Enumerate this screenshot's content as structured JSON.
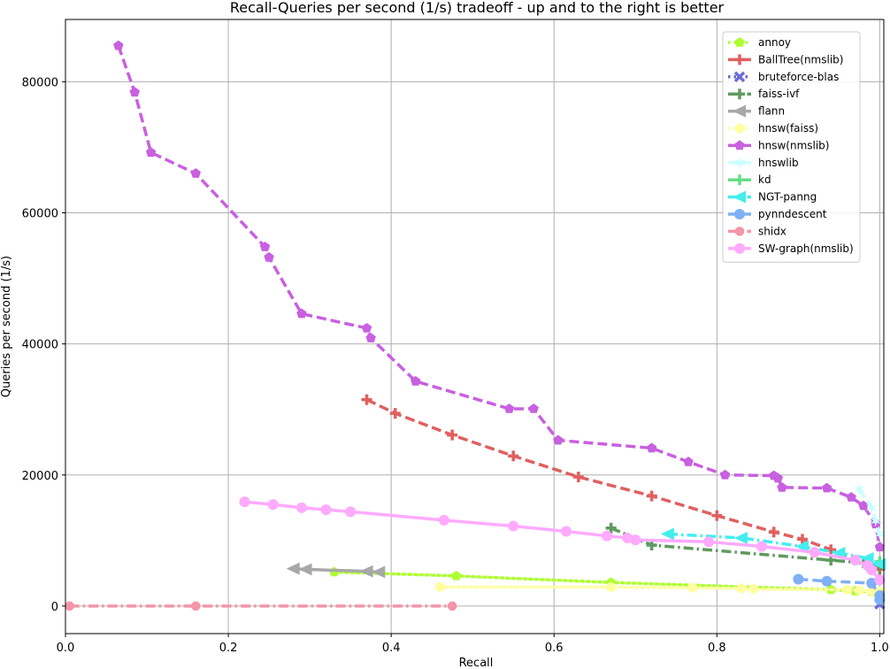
{
  "chart_data": {
    "type": "line",
    "title": "Recall-Queries per second (1/s) tradeoff - up and to the right is better",
    "xlabel": "Recall",
    "ylabel": "Queries per second (1/s)",
    "xlim": [
      0.0,
      1.005
    ],
    "ylim": [
      -4200,
      89500
    ],
    "xticks": [
      0.0,
      0.2,
      0.4,
      0.6,
      0.8,
      1.0
    ],
    "xtick_labels": [
      "0.0",
      "0.2",
      "0.4",
      "0.6",
      "0.8",
      "1.0"
    ],
    "yticks": [
      0,
      20000,
      40000,
      60000,
      80000
    ],
    "ytick_labels": [
      "0",
      "20000",
      "40000",
      "60000",
      "80000"
    ],
    "grid": true,
    "legend_position": "top-right",
    "series": [
      {
        "name": "annoy",
        "color": "#adff2f",
        "dash": "dot",
        "marker": "pentagon",
        "x": [
          0.33,
          0.48,
          0.67,
          0.94,
          0.97,
          0.99,
          1.0
        ],
        "y": [
          5200,
          4600,
          3600,
          2500,
          2300,
          2200,
          2000
        ]
      },
      {
        "name": "BallTree(nmslib)",
        "color": "#e06060",
        "dash": "dash",
        "marker": "plus",
        "x": [
          0.37,
          0.405,
          0.475,
          0.55,
          0.63,
          0.72,
          0.8,
          0.87,
          0.905,
          0.94,
          0.985,
          1.0
        ],
        "y": [
          31500,
          29400,
          26100,
          22900,
          19700,
          16800,
          13800,
          11300,
          10200,
          8600,
          6300,
          5600
        ]
      },
      {
        "name": "bruteforce-blas",
        "color": "#6a6ad8",
        "dash": "dot",
        "marker": "x",
        "x": [
          1.0
        ],
        "y": [
          300
        ]
      },
      {
        "name": "faiss-ivf",
        "color": "#5f9a5f",
        "dash": "dashdot",
        "marker": "plus",
        "x": [
          0.67,
          0.72,
          0.94,
          0.98,
          1.0,
          1.0
        ],
        "y": [
          11900,
          9300,
          7000,
          6600,
          6200,
          4000
        ]
      },
      {
        "name": "flann",
        "color": "#a8a8a8",
        "dash": "solid",
        "marker": "triangle-left",
        "x": [
          0.28,
          0.295,
          0.37,
          0.385
        ],
        "y": [
          5700,
          5600,
          5300,
          5200
        ]
      },
      {
        "name": "hnsw(faiss)",
        "color": "#ffffa0",
        "dash": "dot",
        "marker": "hexagon",
        "x": [
          0.46,
          0.67,
          0.77,
          0.83,
          0.845,
          0.96,
          0.975,
          0.99,
          1.0
        ],
        "y": [
          2900,
          2900,
          2800,
          2700,
          2600,
          2500,
          2400,
          2300,
          2200
        ]
      },
      {
        "name": "hnsw(nmslib)",
        "color": "#c860e0",
        "dash": "dash",
        "marker": "pentagon",
        "x": [
          0.065,
          0.085,
          0.105,
          0.16,
          0.245,
          0.25,
          0.29,
          0.37,
          0.375,
          0.43,
          0.545,
          0.575,
          0.605,
          0.72,
          0.765,
          0.81,
          0.87,
          0.875,
          0.88,
          0.935,
          0.965,
          0.98,
          0.995,
          1.0
        ],
        "y": [
          85500,
          78400,
          69200,
          66000,
          54800,
          53200,
          44600,
          42400,
          40900,
          34300,
          30100,
          30100,
          25300,
          24100,
          22000,
          20000,
          19900,
          19500,
          18100,
          18000,
          16600,
          15300,
          12500,
          9000
        ]
      },
      {
        "name": "hnswlib",
        "color": "#ccffff",
        "dash": "dash",
        "marker": "star",
        "x": [
          0.975,
          0.99,
          0.995,
          1.0
        ],
        "y": [
          17800,
          15000,
          13000,
          11000
        ]
      },
      {
        "name": "kd",
        "color": "#66dd88",
        "dash": "solid",
        "marker": "plus",
        "x": [
          1.0
        ],
        "y": [
          6800
        ]
      },
      {
        "name": "NGT-panng",
        "color": "#44eeee",
        "dash": "dashdot",
        "marker": "triangle-left",
        "x": [
          0.74,
          0.83,
          0.905,
          0.95,
          0.985,
          1.0
        ],
        "y": [
          11000,
          10400,
          9100,
          8100,
          7300,
          6400
        ]
      },
      {
        "name": "pynndescent",
        "color": "#7fb0f5",
        "dash": "dash",
        "marker": "circle",
        "x": [
          0.9,
          0.935,
          0.99,
          1.0,
          1.0
        ],
        "y": [
          4100,
          3800,
          3500,
          1600,
          1000
        ]
      },
      {
        "name": "shidx",
        "color": "#f595aa",
        "dash": "dashdot",
        "marker": "octagon",
        "x": [
          0.005,
          0.16,
          0.475
        ],
        "y": [
          0,
          0,
          0
        ]
      },
      {
        "name": "SW-graph(nmslib)",
        "color": "#ffaaff",
        "dash": "solid",
        "marker": "circle",
        "x": [
          0.22,
          0.255,
          0.29,
          0.32,
          0.35,
          0.465,
          0.55,
          0.615,
          0.665,
          0.69,
          0.7,
          0.79,
          0.855,
          0.92,
          0.97,
          0.985,
          0.99,
          1.0
        ],
        "y": [
          15900,
          15500,
          15000,
          14700,
          14400,
          13100,
          12200,
          11400,
          10700,
          10400,
          10100,
          9800,
          9100,
          8200,
          7000,
          6200,
          5500,
          4000
        ]
      }
    ]
  }
}
